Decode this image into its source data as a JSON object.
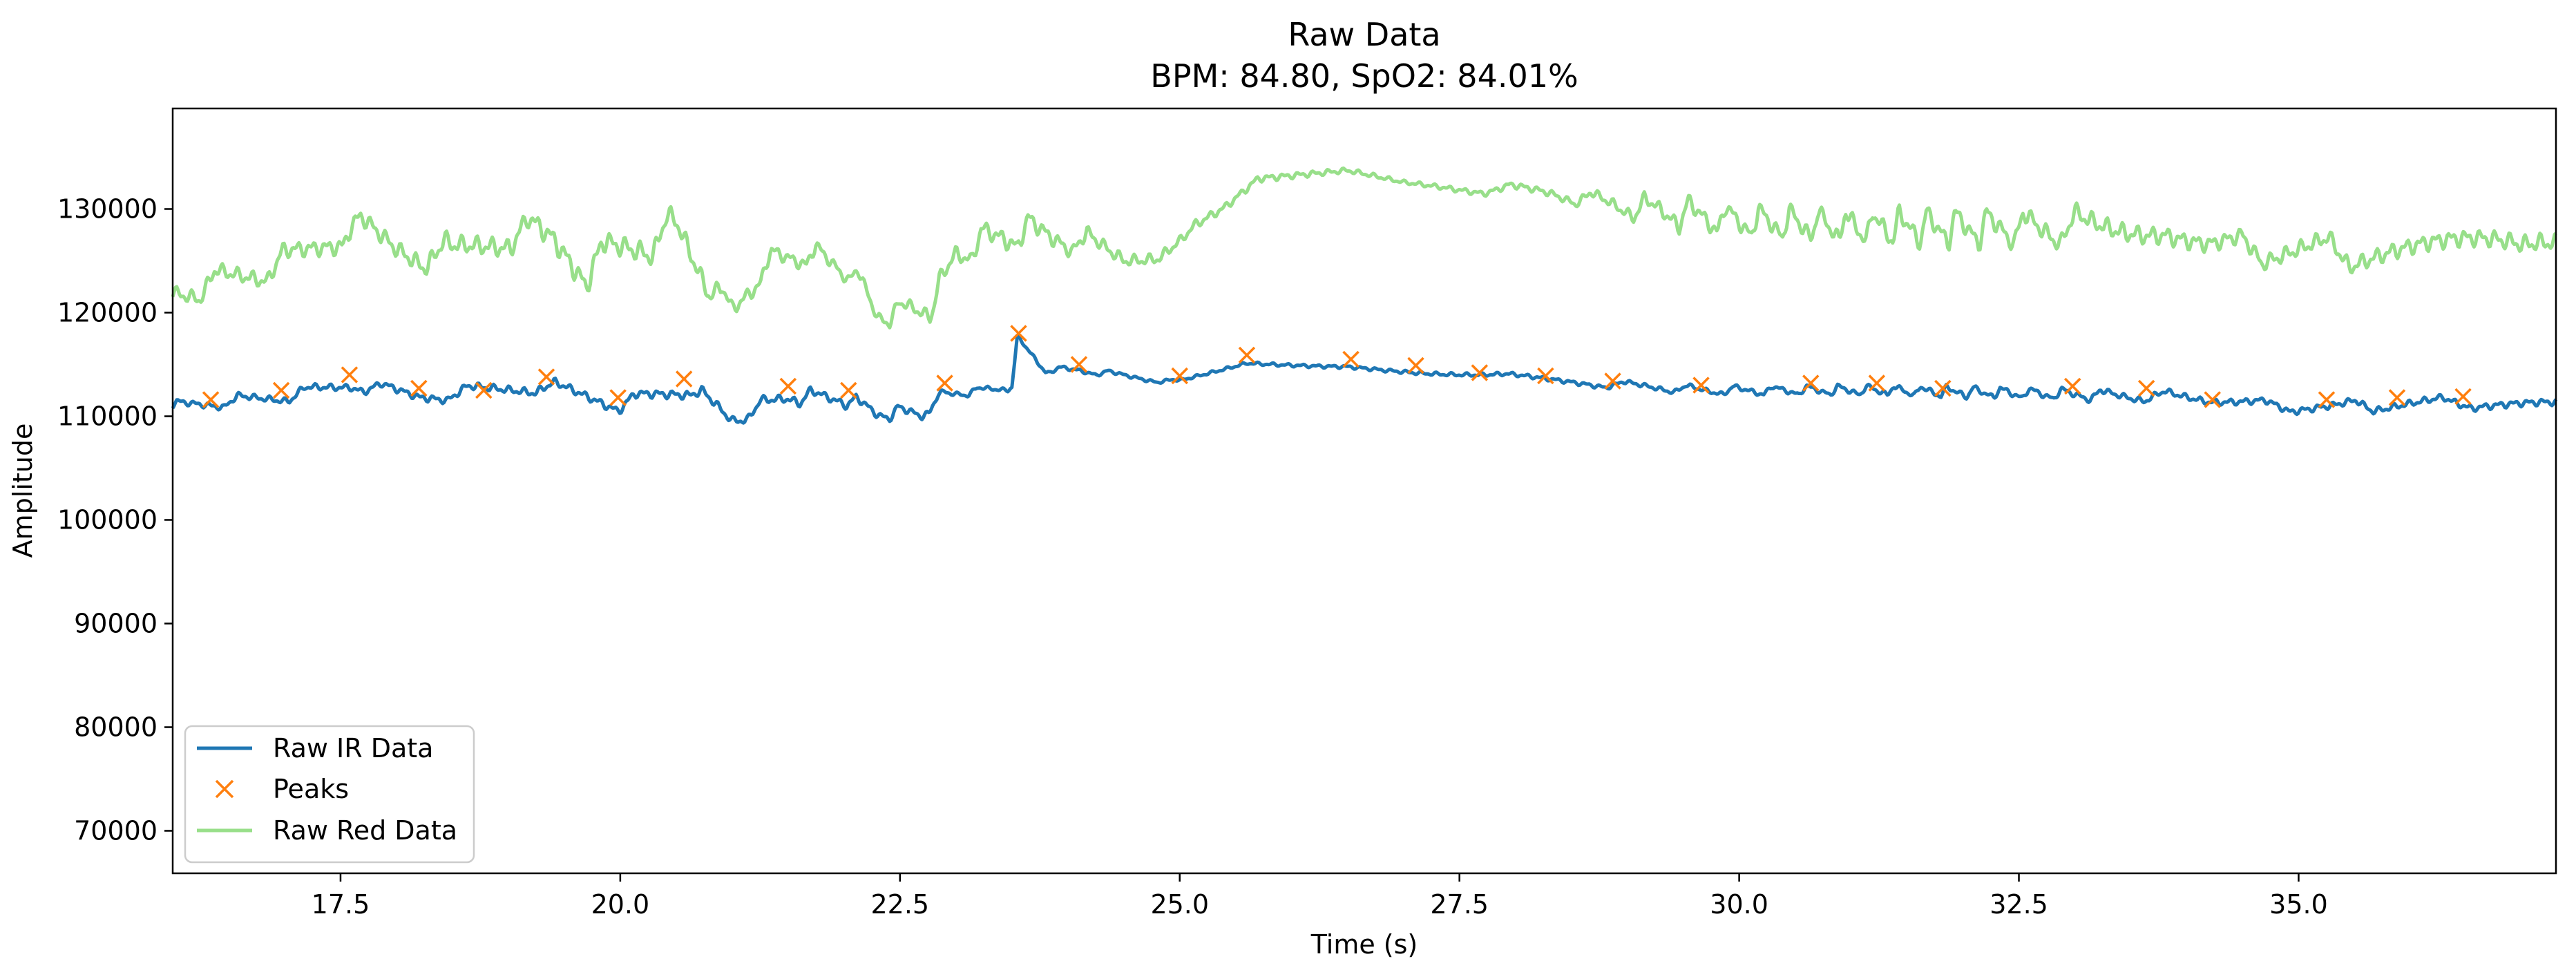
{
  "chart_data": {
    "type": "line",
    "title": "Raw Data",
    "subtitle": "BPM: 84.80, SpO2: 84.01%",
    "xlabel": "Time (s)",
    "ylabel": "Amplitude",
    "xlim": [
      16.0,
      37.3
    ],
    "ylim": [
      65900,
      139700
    ],
    "xticks": [
      17.5,
      20.0,
      22.5,
      25.0,
      27.5,
      30.0,
      32.5,
      35.0
    ],
    "xtick_labels": [
      "17.5",
      "20.0",
      "22.5",
      "25.0",
      "27.5",
      "30.0",
      "32.5",
      "35.0"
    ],
    "yticks": [
      70000,
      80000,
      90000,
      100000,
      110000,
      120000,
      130000
    ],
    "ytick_labels": [
      "70000",
      "80000",
      "90000",
      "100000",
      "110000",
      "120000",
      "130000"
    ],
    "grid": false,
    "legend_position": "lower-left",
    "series": [
      {
        "name": "Raw IR Data",
        "color": "#1f77b4",
        "style": "line",
        "baseline": [
          [
            16.0,
            110800
          ],
          [
            17.0,
            111800
          ],
          [
            17.6,
            113000
          ],
          [
            18.2,
            111800
          ],
          [
            19.3,
            112800
          ],
          [
            20.0,
            111000
          ],
          [
            20.6,
            112600
          ],
          [
            21.0,
            109600
          ],
          [
            21.5,
            111800
          ],
          [
            22.0,
            111600
          ],
          [
            22.3,
            110200
          ],
          [
            22.7,
            110200
          ],
          [
            22.9,
            112000
          ],
          [
            23.5,
            112800
          ],
          [
            23.55,
            117400
          ],
          [
            23.8,
            114400
          ],
          [
            24.1,
            114400
          ],
          [
            25.0,
            113200
          ],
          [
            25.6,
            115200
          ],
          [
            26.5,
            115000
          ],
          [
            27.1,
            114400
          ],
          [
            28.3,
            113400
          ],
          [
            29.7,
            112400
          ],
          [
            31.3,
            112400
          ],
          [
            33.0,
            112000
          ],
          [
            33.8,
            111800
          ],
          [
            34.2,
            111000
          ],
          [
            35.3,
            110800
          ],
          [
            36.5,
            111200
          ],
          [
            37.3,
            111600
          ]
        ],
        "ripple": [
          [
            16.0,
            1000
          ],
          [
            20.8,
            1500
          ],
          [
            22.8,
            1200
          ],
          [
            23.0,
            700
          ],
          [
            25.0,
            500
          ],
          [
            28.5,
            700
          ],
          [
            31.0,
            900
          ],
          [
            34.2,
            1100
          ],
          [
            37.3,
            1200
          ]
        ]
      },
      {
        "name": "Peaks",
        "color": "#ff7f0e",
        "style": "marker-x",
        "points": [
          [
            16.34,
            111600
          ],
          [
            16.97,
            112500
          ],
          [
            17.58,
            114000
          ],
          [
            18.2,
            112700
          ],
          [
            18.78,
            112500
          ],
          [
            19.34,
            113800
          ],
          [
            19.98,
            111800
          ],
          [
            20.57,
            113600
          ],
          [
            21.5,
            112900
          ],
          [
            22.04,
            112500
          ],
          [
            22.9,
            113200
          ],
          [
            23.56,
            118000
          ],
          [
            24.1,
            115000
          ],
          [
            25.0,
            113900
          ],
          [
            25.6,
            115900
          ],
          [
            26.53,
            115500
          ],
          [
            27.11,
            114900
          ],
          [
            27.68,
            114200
          ],
          [
            28.27,
            113900
          ],
          [
            28.87,
            113400
          ],
          [
            29.66,
            113000
          ],
          [
            30.64,
            113200
          ],
          [
            31.23,
            113200
          ],
          [
            31.82,
            112700
          ],
          [
            32.98,
            112900
          ],
          [
            33.64,
            112700
          ],
          [
            34.23,
            111600
          ],
          [
            35.25,
            111600
          ],
          [
            35.88,
            111800
          ],
          [
            36.47,
            111900
          ]
        ]
      },
      {
        "name": "Raw Red Data",
        "color": "#98df8a",
        "style": "line",
        "baseline": [
          [
            16.0,
            121500
          ],
          [
            16.6,
            123300
          ],
          [
            17.0,
            124500
          ],
          [
            17.6,
            128000
          ],
          [
            18.0,
            126000
          ],
          [
            18.5,
            125000
          ],
          [
            19.0,
            127500
          ],
          [
            19.4,
            126500
          ],
          [
            19.7,
            124000
          ],
          [
            20.2,
            126500
          ],
          [
            20.5,
            127500
          ],
          [
            21.0,
            119500
          ],
          [
            21.3,
            124500
          ],
          [
            21.7,
            125500
          ],
          [
            22.1,
            123500
          ],
          [
            22.3,
            119500
          ],
          [
            22.8,
            120500
          ],
          [
            23.0,
            125500
          ],
          [
            23.5,
            127500
          ],
          [
            24.0,
            127000
          ],
          [
            24.5,
            125000
          ],
          [
            25.0,
            126500
          ],
          [
            25.4,
            129500
          ],
          [
            25.7,
            132500
          ],
          [
            26.5,
            133500
          ],
          [
            27.0,
            132500
          ],
          [
            27.5,
            132000
          ],
          [
            28.3,
            131500
          ],
          [
            29.0,
            130000
          ],
          [
            30.0,
            128500
          ],
          [
            31.0,
            128000
          ],
          [
            33.0,
            127800
          ],
          [
            33.8,
            127700
          ],
          [
            34.2,
            126000
          ],
          [
            35.5,
            125500
          ],
          [
            37.0,
            126000
          ],
          [
            37.3,
            127500
          ]
        ],
        "ripple": [
          [
            16.0,
            2400
          ],
          [
            18.5,
            3200
          ],
          [
            19.5,
            3800
          ],
          [
            20.5,
            3600
          ],
          [
            21.0,
            2500
          ],
          [
            22.3,
            1800
          ],
          [
            23.5,
            3200
          ],
          [
            24.2,
            2400
          ],
          [
            25.5,
            1300
          ],
          [
            27.0,
            700
          ],
          [
            28.5,
            1300
          ],
          [
            29.5,
            2700
          ],
          [
            31.5,
            3000
          ],
          [
            33.6,
            3300
          ],
          [
            34.4,
            2700
          ],
          [
            37.3,
            3200
          ]
        ]
      }
    ]
  },
  "legend": {
    "items": [
      {
        "label": "Raw IR Data",
        "color": "#1f77b4",
        "marker": "line"
      },
      {
        "label": "Peaks",
        "color": "#ff7f0e",
        "marker": "x"
      },
      {
        "label": "Raw Red Data",
        "color": "#98df8a",
        "marker": "line"
      }
    ]
  }
}
